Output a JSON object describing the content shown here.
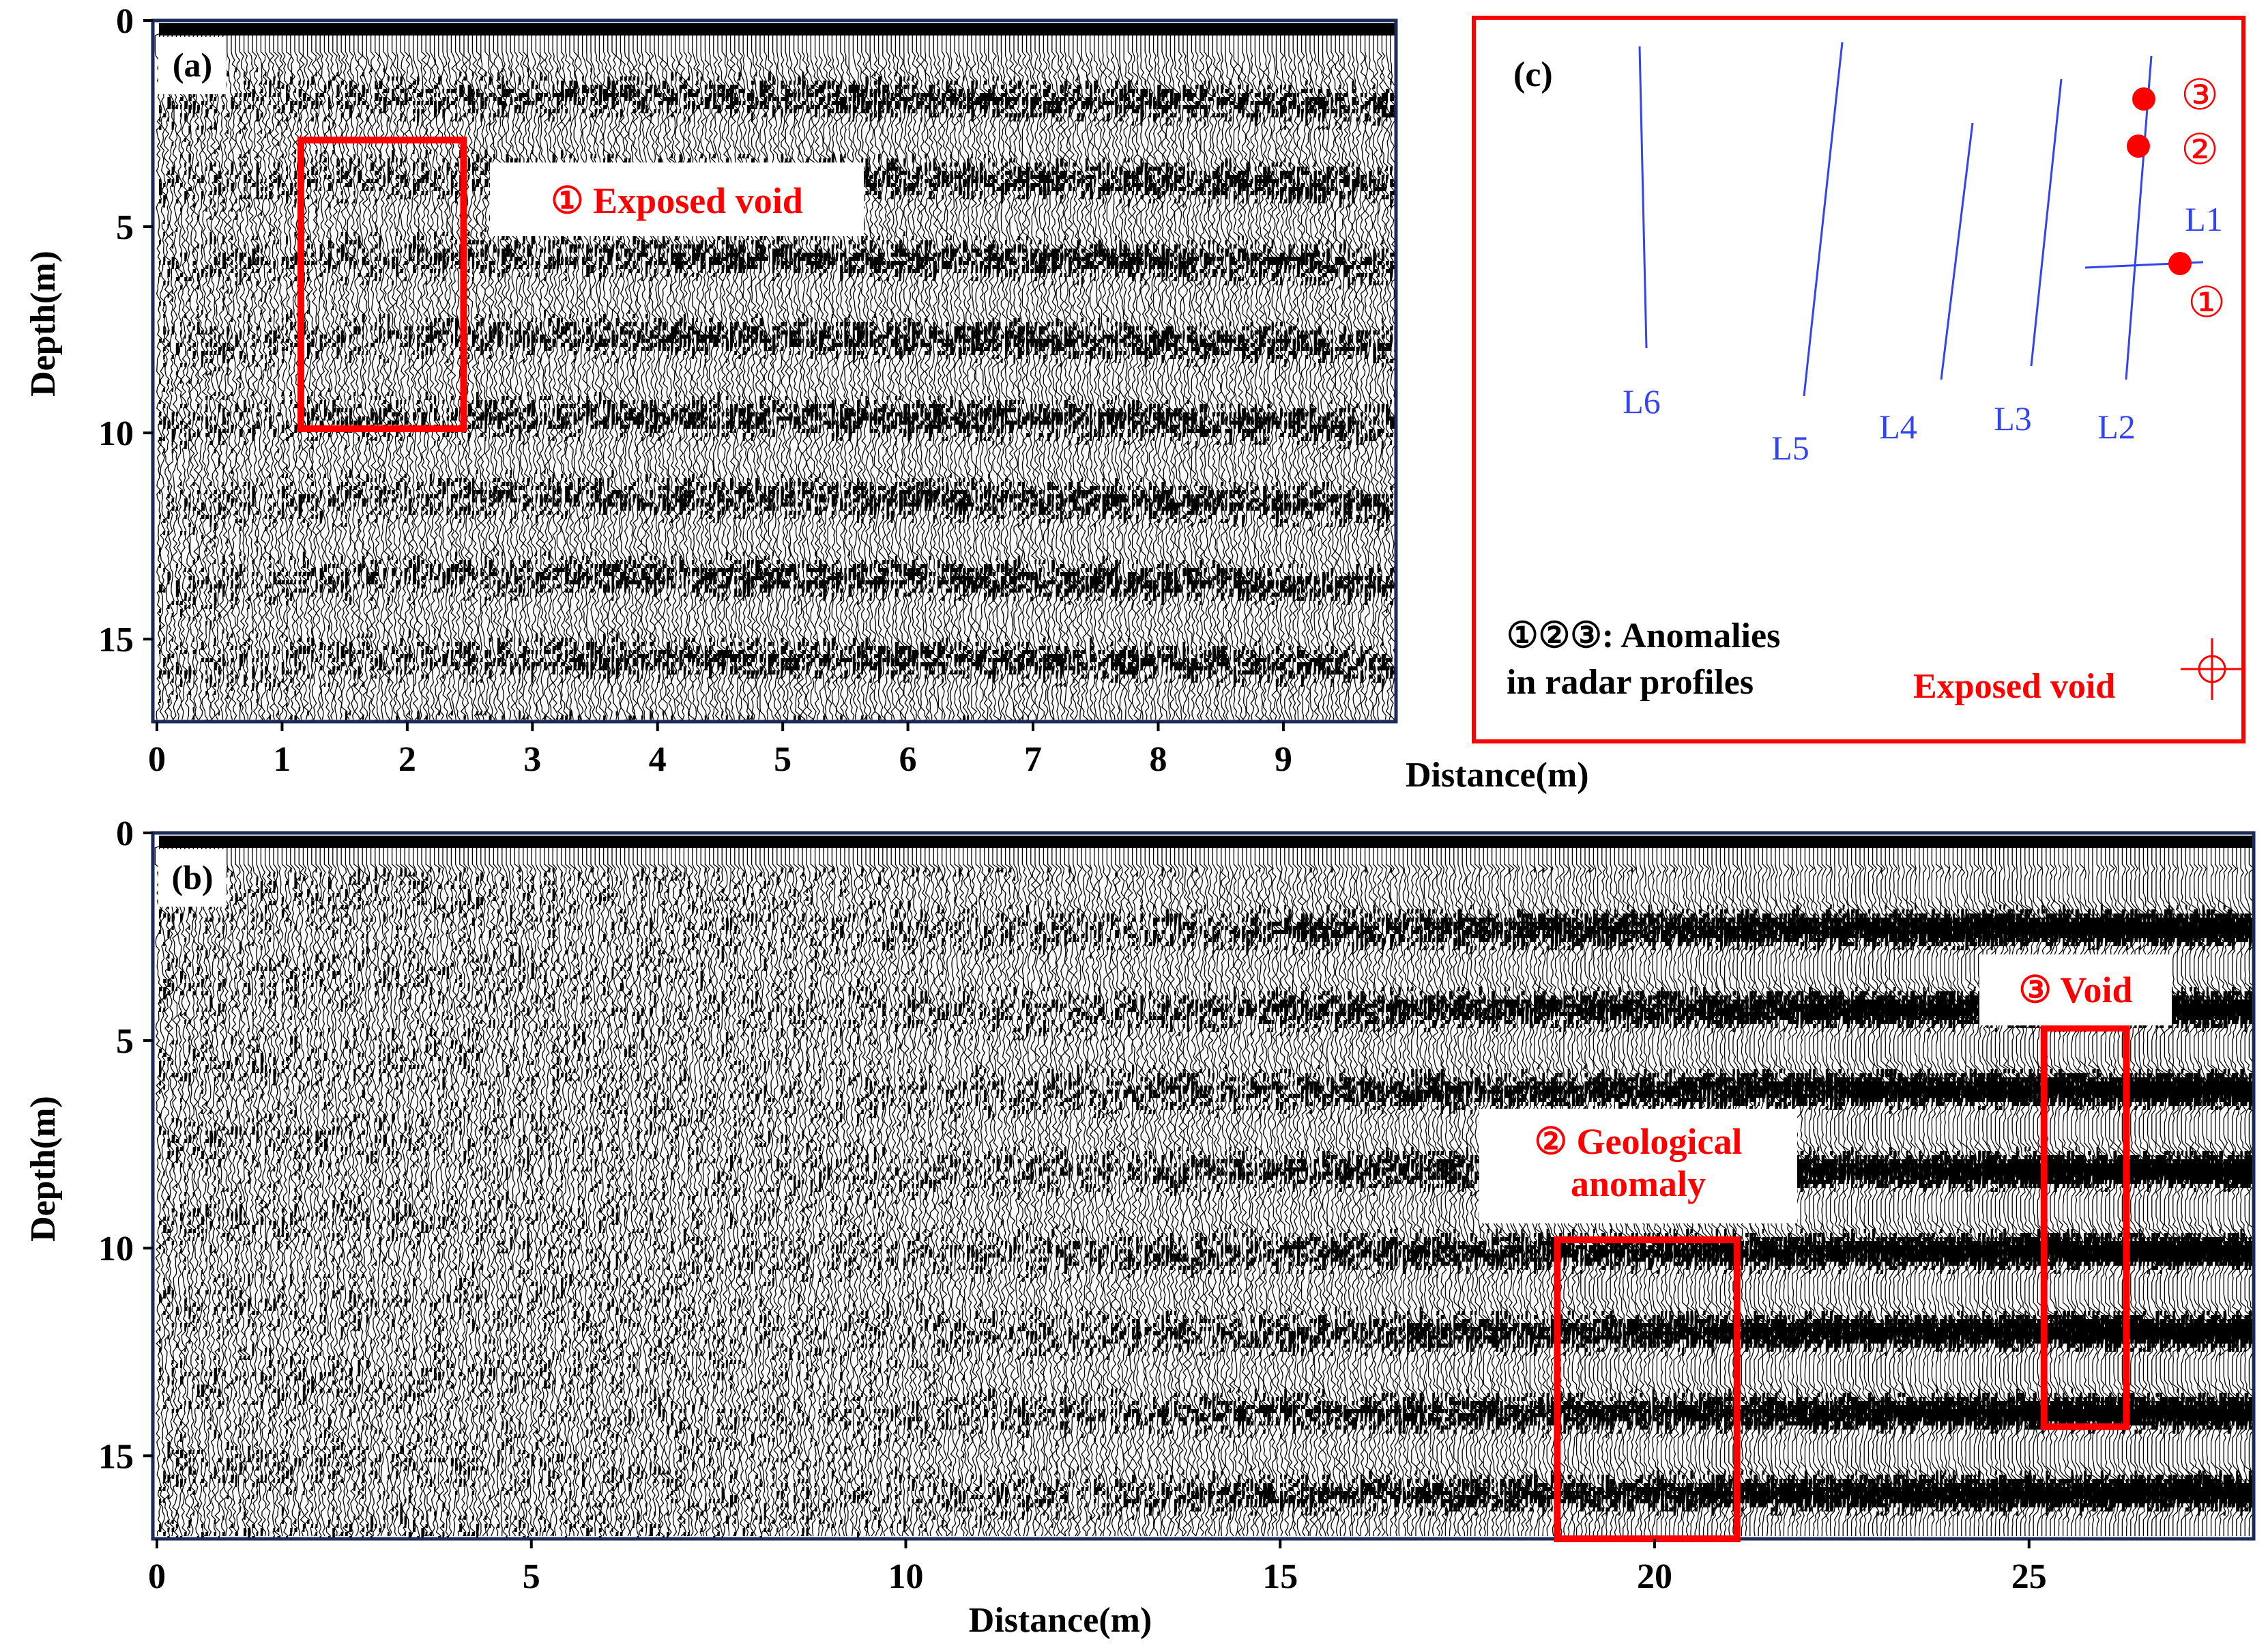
{
  "colors": {
    "trace": "#000000",
    "frame": "#1a2a5a",
    "highlight": "#ff0000",
    "line": "#3344ee",
    "background": "#ffffff"
  },
  "panel_a": {
    "label": "(a)",
    "xlabel": "Distance(m)",
    "ylabel": "Depth(m)",
    "xlim": [
      0,
      9.9
    ],
    "ylim": [
      0,
      17
    ],
    "xticks": [
      "0",
      "1",
      "2",
      "3",
      "4",
      "5",
      "6",
      "7",
      "8",
      "9"
    ],
    "yticks": [
      "0",
      "5",
      "10",
      "15"
    ],
    "annotation": "① Exposed void",
    "box": {
      "x0": 1.15,
      "x1": 2.45,
      "y0": 2.9,
      "y1": 9.9
    }
  },
  "panel_b": {
    "label": "(b)",
    "xlabel": "Distance(m)",
    "ylabel": "Depth(m)",
    "xlim": [
      0,
      28
    ],
    "ylim": [
      0,
      17
    ],
    "xticks": [
      "0",
      "5",
      "10",
      "15",
      "20",
      "25"
    ],
    "yticks": [
      "0",
      "5",
      "10",
      "15"
    ],
    "annotations": [
      {
        "lines": [
          "② Geological",
          "anomaly"
        ],
        "box": {
          "x0": 18.7,
          "x1": 21.1,
          "y0": 9.8,
          "y1": 17
        }
      },
      {
        "lines": [
          "③ Void"
        ],
        "box": {
          "x0": 25.2,
          "x1": 26.3,
          "y0": 4.7,
          "y1": 14.3
        }
      }
    ]
  },
  "panel_c": {
    "label": "(c)",
    "survey_lines": [
      "L1",
      "L2",
      "L3",
      "L4",
      "L5",
      "L6"
    ],
    "anomaly_marks": [
      "①",
      "②",
      "③"
    ],
    "legend_line1": "①②③:  Anomalies",
    "legend_line2": "in radar profiles",
    "void_label": "Exposed void",
    "void_icon": "crosshair-circle-icon"
  }
}
